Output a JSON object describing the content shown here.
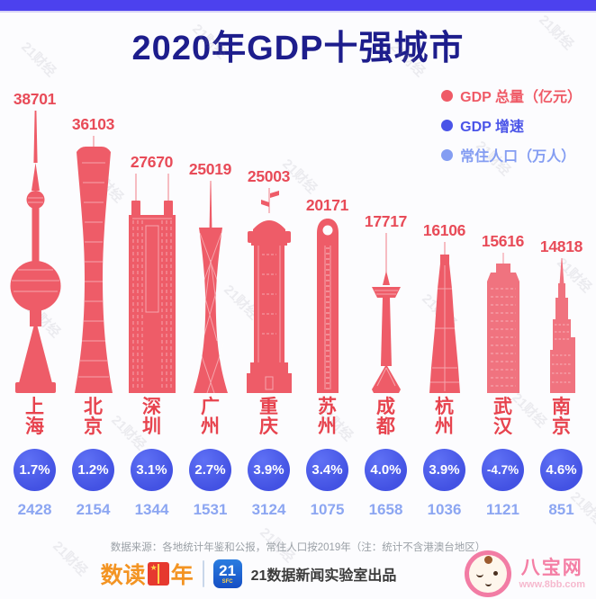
{
  "watermark": {
    "text": "21财经"
  },
  "header": {
    "title": "2020年GDP十强城市",
    "top_bar_color": "#4c41ee"
  },
  "legend": {
    "gdp_total": "GDP 总量（亿元）",
    "gdp_growth": "GDP 增速",
    "population": "常住人口（万人）",
    "colors": {
      "gdp_total": "#ef5a66",
      "gdp_growth": "#4a54e8",
      "population": "#849df2"
    }
  },
  "cities": [
    {
      "name": "上海",
      "gdp": "38701",
      "growth": "1.7%",
      "population": "2428"
    },
    {
      "name": "北京",
      "gdp": "36103",
      "growth": "1.2%",
      "population": "2154"
    },
    {
      "name": "深圳",
      "gdp": "27670",
      "growth": "3.1%",
      "population": "1344"
    },
    {
      "name": "广州",
      "gdp": "25019",
      "growth": "2.7%",
      "population": "1531"
    },
    {
      "name": "重庆",
      "gdp": "25003",
      "growth": "3.9%",
      "population": "3124"
    },
    {
      "name": "苏州",
      "gdp": "20171",
      "growth": "3.4%",
      "population": "1075"
    },
    {
      "name": "成都",
      "gdp": "17717",
      "growth": "4.0%",
      "population": "1658"
    },
    {
      "name": "杭州",
      "gdp": "16106",
      "growth": "3.9%",
      "population": "1036"
    },
    {
      "name": "武汉",
      "gdp": "15616",
      "growth": "-4.7%",
      "population": "1121"
    },
    {
      "name": "南京",
      "gdp": "14818",
      "growth": "4.6%",
      "population": "851"
    }
  ],
  "chart_data": {
    "type": "bar",
    "title": "2020年GDP十强城市",
    "categories": [
      "上海",
      "北京",
      "深圳",
      "广州",
      "重庆",
      "苏州",
      "成都",
      "杭州",
      "武汉",
      "南京"
    ],
    "series": [
      {
        "name": "GDP 总量（亿元）",
        "values": [
          38701,
          36103,
          27670,
          25019,
          25003,
          20171,
          17717,
          16106,
          15616,
          14818
        ]
      },
      {
        "name": "GDP 增速（%）",
        "values": [
          1.7,
          1.2,
          3.1,
          2.7,
          3.9,
          3.4,
          4.0,
          3.9,
          -4.7,
          4.6
        ]
      },
      {
        "name": "常住人口（万人）",
        "values": [
          2428,
          2154,
          1344,
          1531,
          3124,
          1075,
          1658,
          1036,
          1121,
          851
        ]
      }
    ],
    "legend_position": "top-right",
    "grid": false,
    "style": "pictorial bars drawn as landmark towers of each city"
  },
  "footer": {
    "source": "数据来源：各地统计年鉴和公报，常住人口按2019年（注：统计不含港澳台地区）",
    "logo_prefix": "数读",
    "logo_suffix": "年",
    "badge": "21",
    "badge_sub": "SFC",
    "production": "21数据新闻实验室出品",
    "site_name": "八宝网",
    "site_url": "www.8bb.com"
  }
}
